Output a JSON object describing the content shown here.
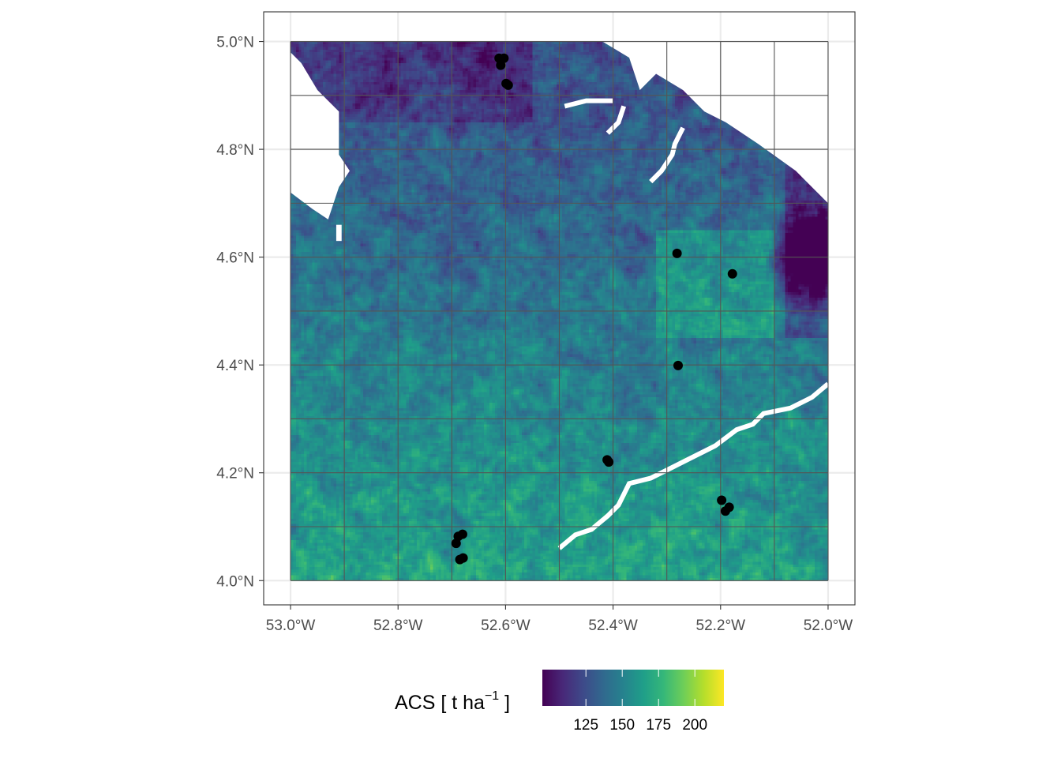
{
  "map": {
    "x_axis": {
      "range": [
        -53.05,
        -51.95
      ],
      "ticks": [
        {
          "value": -53.0,
          "label": "53.0°W"
        },
        {
          "value": -52.8,
          "label": "52.8°W"
        },
        {
          "value": -52.6,
          "label": "52.6°W"
        },
        {
          "value": -52.4,
          "label": "52.4°W"
        },
        {
          "value": -52.2,
          "label": "52.2°W"
        },
        {
          "value": -52.0,
          "label": "52.0°W"
        }
      ]
    },
    "y_axis": {
      "range": [
        3.955,
        5.055
      ],
      "ticks": [
        {
          "value": 4.0,
          "label": "4.0°N"
        },
        {
          "value": 4.2,
          "label": "4.2°N"
        },
        {
          "value": 4.4,
          "label": "4.4°N"
        },
        {
          "value": 4.6,
          "label": "4.6°N"
        },
        {
          "value": 4.8,
          "label": "4.8°N"
        },
        {
          "value": 5.0,
          "label": "5.0°N"
        }
      ]
    },
    "raster": {
      "layer": "ACS",
      "extent": {
        "lon": [
          -53.0,
          -52.0
        ],
        "lat": [
          4.0,
          5.0
        ]
      },
      "value_range": [
        95,
        220
      ]
    },
    "grid_tiles": {
      "lon_breaks": [
        -53.0,
        -52.9,
        -52.8,
        -52.7,
        -52.6,
        -52.5,
        -52.4,
        -52.3,
        -52.2,
        -52.1,
        -52.0
      ],
      "lat_breaks": [
        4.0,
        4.1,
        4.2,
        4.3,
        4.4,
        4.5,
        4.6,
        4.7,
        4.8,
        4.9,
        5.0
      ],
      "color": "#555555"
    },
    "plots": [
      {
        "lon": -52.612,
        "lat": 4.969
      },
      {
        "lon": -52.603,
        "lat": 4.969
      },
      {
        "lon": -52.609,
        "lat": 4.956
      },
      {
        "lon": -52.599,
        "lat": 4.922
      },
      {
        "lon": -52.595,
        "lat": 4.919
      },
      {
        "lon": -52.281,
        "lat": 4.607
      },
      {
        "lon": -52.178,
        "lat": 4.569
      },
      {
        "lon": -52.279,
        "lat": 4.399
      },
      {
        "lon": -52.411,
        "lat": 4.224
      },
      {
        "lon": -52.408,
        "lat": 4.22
      },
      {
        "lon": -52.198,
        "lat": 4.149
      },
      {
        "lon": -52.184,
        "lat": 4.136
      },
      {
        "lon": -52.191,
        "lat": 4.129
      },
      {
        "lon": -52.68,
        "lat": 4.086
      },
      {
        "lon": -52.688,
        "lat": 4.082
      },
      {
        "lon": -52.692,
        "lat": 4.069
      },
      {
        "lon": -52.679,
        "lat": 4.042
      },
      {
        "lon": -52.685,
        "lat": 4.039
      }
    ],
    "nodata_color": "#ffffff",
    "point_color": "#000000"
  },
  "legend": {
    "title_main": "ACS [ t ha",
    "title_sup": "−1",
    "title_end": " ]",
    "range": [
      95,
      220
    ],
    "breaks": [
      {
        "value": 125,
        "label": "125"
      },
      {
        "value": 150,
        "label": "150"
      },
      {
        "value": 175,
        "label": "175"
      },
      {
        "value": 200,
        "label": "200"
      }
    ],
    "colors": [
      "#440154",
      "#482878",
      "#3e4989",
      "#31688e",
      "#26828e",
      "#1f9e89",
      "#35b779",
      "#6ece58",
      "#b5de2b",
      "#fde725"
    ]
  }
}
